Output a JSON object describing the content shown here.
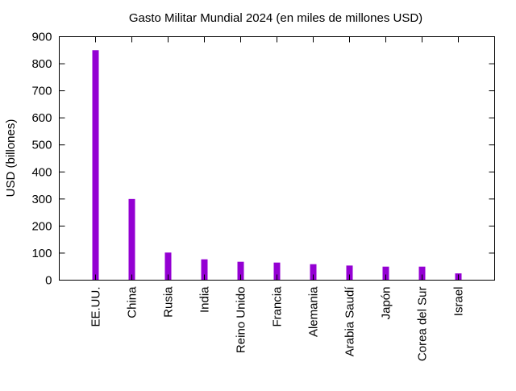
{
  "chart_data": {
    "type": "bar",
    "title": "Gasto Militar Mundial 2024 (en miles de millones USD)",
    "xlabel": "",
    "ylabel": "USD (billones)",
    "ylim": [
      0,
      900
    ],
    "yticks": [
      0,
      100,
      200,
      300,
      400,
      500,
      600,
      700,
      800,
      900
    ],
    "categories": [
      "EE.UU.",
      "China",
      "Rusia",
      "India",
      "Reino Unido",
      "Francia",
      "Alemania",
      "Arabia Saudí",
      "Japón",
      "Corea del Sur",
      "Israel"
    ],
    "values": [
      850,
      300,
      102,
      77,
      68,
      65,
      59,
      54,
      50,
      50,
      25
    ],
    "bar_color": "#9400d3",
    "grid": false,
    "legend": "none"
  }
}
